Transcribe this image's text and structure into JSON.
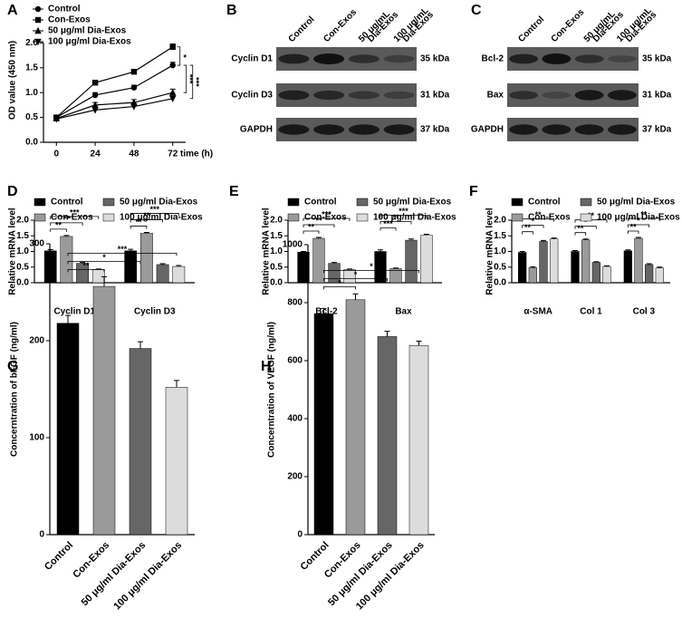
{
  "chart_data": [
    {
      "label": "A",
      "type": "line",
      "x_label": "time (h)",
      "y_label": "OD value (450 nm)",
      "x": [
        0,
        24,
        48,
        72
      ],
      "xlim": [
        -8,
        80
      ],
      "xticks": [
        0,
        24,
        48,
        72
      ],
      "ylim": [
        0,
        2.5
      ],
      "yticks": [
        {
          "value": 0,
          "label": "0.0"
        },
        {
          "value": 0.5,
          "label": "0.5"
        },
        {
          "value": 1,
          "label": "1.0"
        },
        {
          "value": 1.5,
          "label": "1.5"
        },
        {
          "value": 2,
          "label": "2.0"
        }
      ],
      "series": [
        {
          "name": "Control",
          "marker": "circle",
          "color": "#000000",
          "values": [
            0.5,
            0.95,
            1.1,
            1.55
          ],
          "errors": [
            0.04,
            0.05,
            0.05,
            0.06
          ]
        },
        {
          "name": "Con-Exos",
          "marker": "square",
          "color": "#000000",
          "values": [
            0.5,
            1.2,
            1.42,
            1.92
          ],
          "errors": [
            0.04,
            0.05,
            0.05,
            0.06
          ]
        },
        {
          "name": "50 μg/ml Dia-Exos",
          "marker": "triangle-up",
          "color": "#000000",
          "values": [
            0.48,
            0.75,
            0.8,
            1.0
          ],
          "errors": [
            0.04,
            0.05,
            0.06,
            0.07
          ]
        },
        {
          "name": "100 μg/ml Dia-Exos",
          "marker": "triangle-down",
          "color": "#000000",
          "values": [
            0.47,
            0.65,
            0.72,
            0.88
          ],
          "errors": [
            0.04,
            0.05,
            0.06,
            0.05
          ]
        }
      ],
      "significance": [
        {
          "label": "*",
          "between": [
            1,
            0
          ]
        },
        {
          "label": "***",
          "between": [
            0,
            2
          ]
        },
        {
          "label": "***",
          "between": [
            0,
            3
          ]
        }
      ]
    },
    {
      "label": "B",
      "type": "blot",
      "columns": [
        [
          "Control"
        ],
        [
          "Con-Exos"
        ],
        [
          "50 μg/mL",
          "Dia-Exos"
        ],
        [
          "100 μg/mL",
          "Dia-Exos"
        ]
      ],
      "rows": [
        {
          "name": "Cyclin D1",
          "size": "35 kDa"
        },
        {
          "name": "Cyclin D3",
          "size": "31 kDa"
        },
        {
          "name": "GAPDH",
          "size": "37 kDa"
        }
      ]
    },
    {
      "label": "C",
      "type": "blot",
      "columns": [
        [
          "Control"
        ],
        [
          "Con-Exos"
        ],
        [
          "50 μg/mL",
          "Dia-Exos"
        ],
        [
          "100 μg/mL",
          "Dia-Exos"
        ]
      ],
      "rows": [
        {
          "name": "Bcl-2",
          "size": "35 kDa"
        },
        {
          "name": "Bax",
          "size": "31 kDa"
        },
        {
          "name": "GAPDH",
          "size": "37 kDa"
        }
      ]
    },
    {
      "label": "D",
      "type": "grouped-bar",
      "y_label": "Relative mRNA level",
      "categories": [
        "Cyclin D1",
        "Cyclin D3"
      ],
      "ylim": [
        0,
        2
      ],
      "yticks": [
        {
          "value": 0,
          "label": "0.0"
        },
        {
          "value": 0.5,
          "label": "0.5"
        },
        {
          "value": 1,
          "label": "1.0"
        },
        {
          "value": 1.5,
          "label": "1.5"
        },
        {
          "value": 2,
          "label": "2.0"
        }
      ],
      "series": [
        {
          "name": "Control",
          "color": "#000000",
          "values": [
            1.02,
            1.02
          ],
          "errors": [
            0.04,
            0.05
          ]
        },
        {
          "name": "Con-Exos",
          "color": "#9a9a9a",
          "values": [
            1.48,
            1.58
          ],
          "errors": [
            0.03,
            0.03
          ]
        },
        {
          "name": "50 μg/ml Dia-Exos",
          "color": "#666666",
          "values": [
            0.62,
            0.58
          ],
          "errors": [
            0.03,
            0.03
          ]
        },
        {
          "name": "100 μg/ml Dia-Exos",
          "color": "#dcdcdc",
          "values": [
            0.42,
            0.52
          ],
          "errors": [
            0.02,
            0.03
          ]
        }
      ],
      "significance": [
        [
          {
            "label": "**",
            "between": [
              0,
              1
            ]
          },
          {
            "label": "**",
            "between": [
              0,
              2
            ]
          },
          {
            "label": "***",
            "between": [
              0,
              3
            ]
          }
        ],
        [
          {
            "label": "**",
            "between": [
              0,
              1
            ]
          },
          {
            "label": "**",
            "between": [
              0,
              2
            ]
          },
          {
            "label": "***",
            "between": [
              0,
              3
            ]
          }
        ]
      ]
    },
    {
      "label": "E",
      "type": "grouped-bar",
      "y_label": "Relative mRNA level",
      "categories": [
        "Bcl-2",
        "Bax"
      ],
      "ylim": [
        0,
        2
      ],
      "yticks": [
        {
          "value": 0,
          "label": "0.0"
        },
        {
          "value": 0.5,
          "label": "0.5"
        },
        {
          "value": 1,
          "label": "1.0"
        },
        {
          "value": 1.5,
          "label": "1.5"
        },
        {
          "value": 2,
          "label": "2.0"
        }
      ],
      "series": [
        {
          "name": "Control",
          "color": "#000000",
          "values": [
            0.98,
            1.0
          ],
          "errors": [
            0.02,
            0.05
          ]
        },
        {
          "name": "Con-Exos",
          "color": "#9a9a9a",
          "values": [
            1.42,
            0.45
          ],
          "errors": [
            0.03,
            0.02
          ]
        },
        {
          "name": "50 μg/ml Dia-Exos",
          "color": "#666666",
          "values": [
            0.62,
            1.36
          ],
          "errors": [
            0.03,
            0.04
          ]
        },
        {
          "name": "100 μg/ml Dia-Exos",
          "color": "#dcdcdc",
          "values": [
            0.42,
            1.52
          ],
          "errors": [
            0.02,
            0.03
          ]
        }
      ],
      "significance": [
        [
          {
            "label": "**",
            "between": [
              0,
              1
            ]
          },
          {
            "label": "**",
            "between": [
              0,
              2
            ]
          },
          {
            "label": "***",
            "between": [
              0,
              3
            ]
          }
        ],
        [
          {
            "label": "***",
            "between": [
              0,
              1
            ]
          },
          {
            "label": "**",
            "between": [
              0,
              2
            ]
          },
          {
            "label": "***",
            "between": [
              0,
              3
            ]
          }
        ]
      ]
    },
    {
      "label": "F",
      "type": "grouped-bar",
      "y_label": "Relative mRNA level",
      "categories": [
        "α-SMA",
        "Col 1",
        "Col 3"
      ],
      "ylim": [
        0,
        2
      ],
      "yticks": [
        {
          "value": 0,
          "label": "0.0"
        },
        {
          "value": 0.5,
          "label": "0.5"
        },
        {
          "value": 1,
          "label": "1.0"
        },
        {
          "value": 1.5,
          "label": "1.5"
        },
        {
          "value": 2,
          "label": "2.0"
        }
      ],
      "series": [
        {
          "name": "Control",
          "color": "#000000",
          "values": [
            0.97,
            1.0,
            1.02
          ],
          "errors": [
            0.03,
            0.03,
            0.03
          ]
        },
        {
          "name": "Con-Exos",
          "color": "#9a9a9a",
          "values": [
            0.48,
            1.37,
            1.42
          ],
          "errors": [
            0.03,
            0.03,
            0.03
          ]
        },
        {
          "name": "50 μg/ml Dia-Exos",
          "color": "#666666",
          "values": [
            1.32,
            0.65,
            0.58
          ],
          "errors": [
            0.03,
            0.02,
            0.03
          ]
        },
        {
          "name": "100 μg/ml Dia-Exos",
          "color": "#dcdcdc",
          "values": [
            1.4,
            0.52,
            0.47
          ],
          "errors": [
            0.03,
            0.02,
            0.03
          ]
        }
      ],
      "significance": [
        [
          {
            "label": "**",
            "between": [
              0,
              1
            ]
          },
          {
            "label": "*",
            "between": [
              0,
              2
            ]
          },
          {
            "label": "**",
            "between": [
              0,
              3
            ]
          }
        ],
        [
          {
            "label": "**",
            "between": [
              0,
              1
            ]
          },
          {
            "label": "*",
            "between": [
              0,
              2
            ]
          },
          {
            "label": "**",
            "between": [
              0,
              3
            ]
          }
        ],
        [
          {
            "label": "**",
            "between": [
              0,
              1
            ]
          },
          {
            "label": "*",
            "between": [
              0,
              2
            ]
          },
          {
            "label": "**",
            "between": [
              0,
              3
            ]
          }
        ]
      ]
    },
    {
      "label": "G",
      "type": "bar",
      "y_label": "Concerntration of bFGF (ng/ml)",
      "categories": [
        "Control",
        "Con-Exos",
        "50 μg/ml Dia-Exos",
        "100 μg/ml Dia-Exos"
      ],
      "values": [
        218,
        256,
        192,
        152
      ],
      "errors": [
        8,
        10,
        7,
        7
      ],
      "colors": [
        "#000000",
        "#9a9a9a",
        "#666666",
        "#dcdcdc"
      ],
      "ylim": [
        0,
        300
      ],
      "yticks": [
        0,
        100,
        200,
        300
      ],
      "significance": [
        {
          "label": "**",
          "between": [
            0,
            1
          ]
        },
        {
          "label": "*",
          "between": [
            0,
            2
          ]
        },
        {
          "label": "***",
          "between": [
            0,
            3
          ]
        }
      ]
    },
    {
      "label": "H",
      "type": "bar",
      "y_label": "Concerntration of VEGF (ng/ml)",
      "categories": [
        "Control",
        "Con-Exos",
        "50 μg/ml Dia-Exos",
        "100 μg/ml Dia-Exos"
      ],
      "values": [
        762,
        810,
        683,
        652
      ],
      "errors": [
        18,
        20,
        18,
        15
      ],
      "colors": [
        "#000000",
        "#9a9a9a",
        "#666666",
        "#dcdcdc"
      ],
      "ylim": [
        0,
        1000
      ],
      "yticks": [
        0,
        200,
        400,
        600,
        800,
        1000
      ],
      "significance": [
        {
          "label": "*",
          "between": [
            0,
            1
          ]
        },
        {
          "label": "*",
          "between": [
            0,
            2
          ]
        },
        {
          "label": "*",
          "between": [
            0,
            3
          ]
        }
      ]
    }
  ]
}
